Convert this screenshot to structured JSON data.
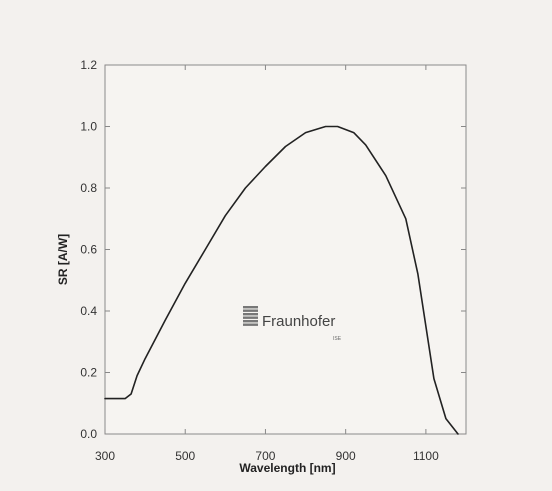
{
  "chart_data": {
    "type": "line",
    "xlabel": "Wavelength [nm]",
    "ylabel": "SR [A/W]",
    "xlim": [
      300,
      1200
    ],
    "ylim": [
      0.0,
      1.2
    ],
    "x_ticks": [
      "300",
      "500",
      "700",
      "900",
      "1100"
    ],
    "y_ticks": [
      "0.0",
      "0.2",
      "0.4",
      "0.6",
      "0.8",
      "1.0",
      "1.2"
    ],
    "grid": false,
    "series": [
      {
        "color": "#222222",
        "points": [
          [
            300,
            0.115
          ],
          [
            350,
            0.115
          ],
          [
            365,
            0.13
          ],
          [
            380,
            0.19
          ],
          [
            400,
            0.245
          ],
          [
            450,
            0.37
          ],
          [
            500,
            0.49
          ],
          [
            550,
            0.6
          ],
          [
            600,
            0.71
          ],
          [
            650,
            0.8
          ],
          [
            700,
            0.87
          ],
          [
            750,
            0.935
          ],
          [
            800,
            0.98
          ],
          [
            850,
            1.0
          ],
          [
            880,
            1.0
          ],
          [
            920,
            0.98
          ],
          [
            950,
            0.94
          ],
          [
            1000,
            0.84
          ],
          [
            1050,
            0.7
          ],
          [
            1080,
            0.52
          ],
          [
            1100,
            0.35
          ],
          [
            1120,
            0.18
          ],
          [
            1150,
            0.05
          ],
          [
            1180,
            0.0
          ]
        ]
      }
    ]
  },
  "watermark": {
    "name": "Fraunhofer",
    "sub": "ISE"
  }
}
